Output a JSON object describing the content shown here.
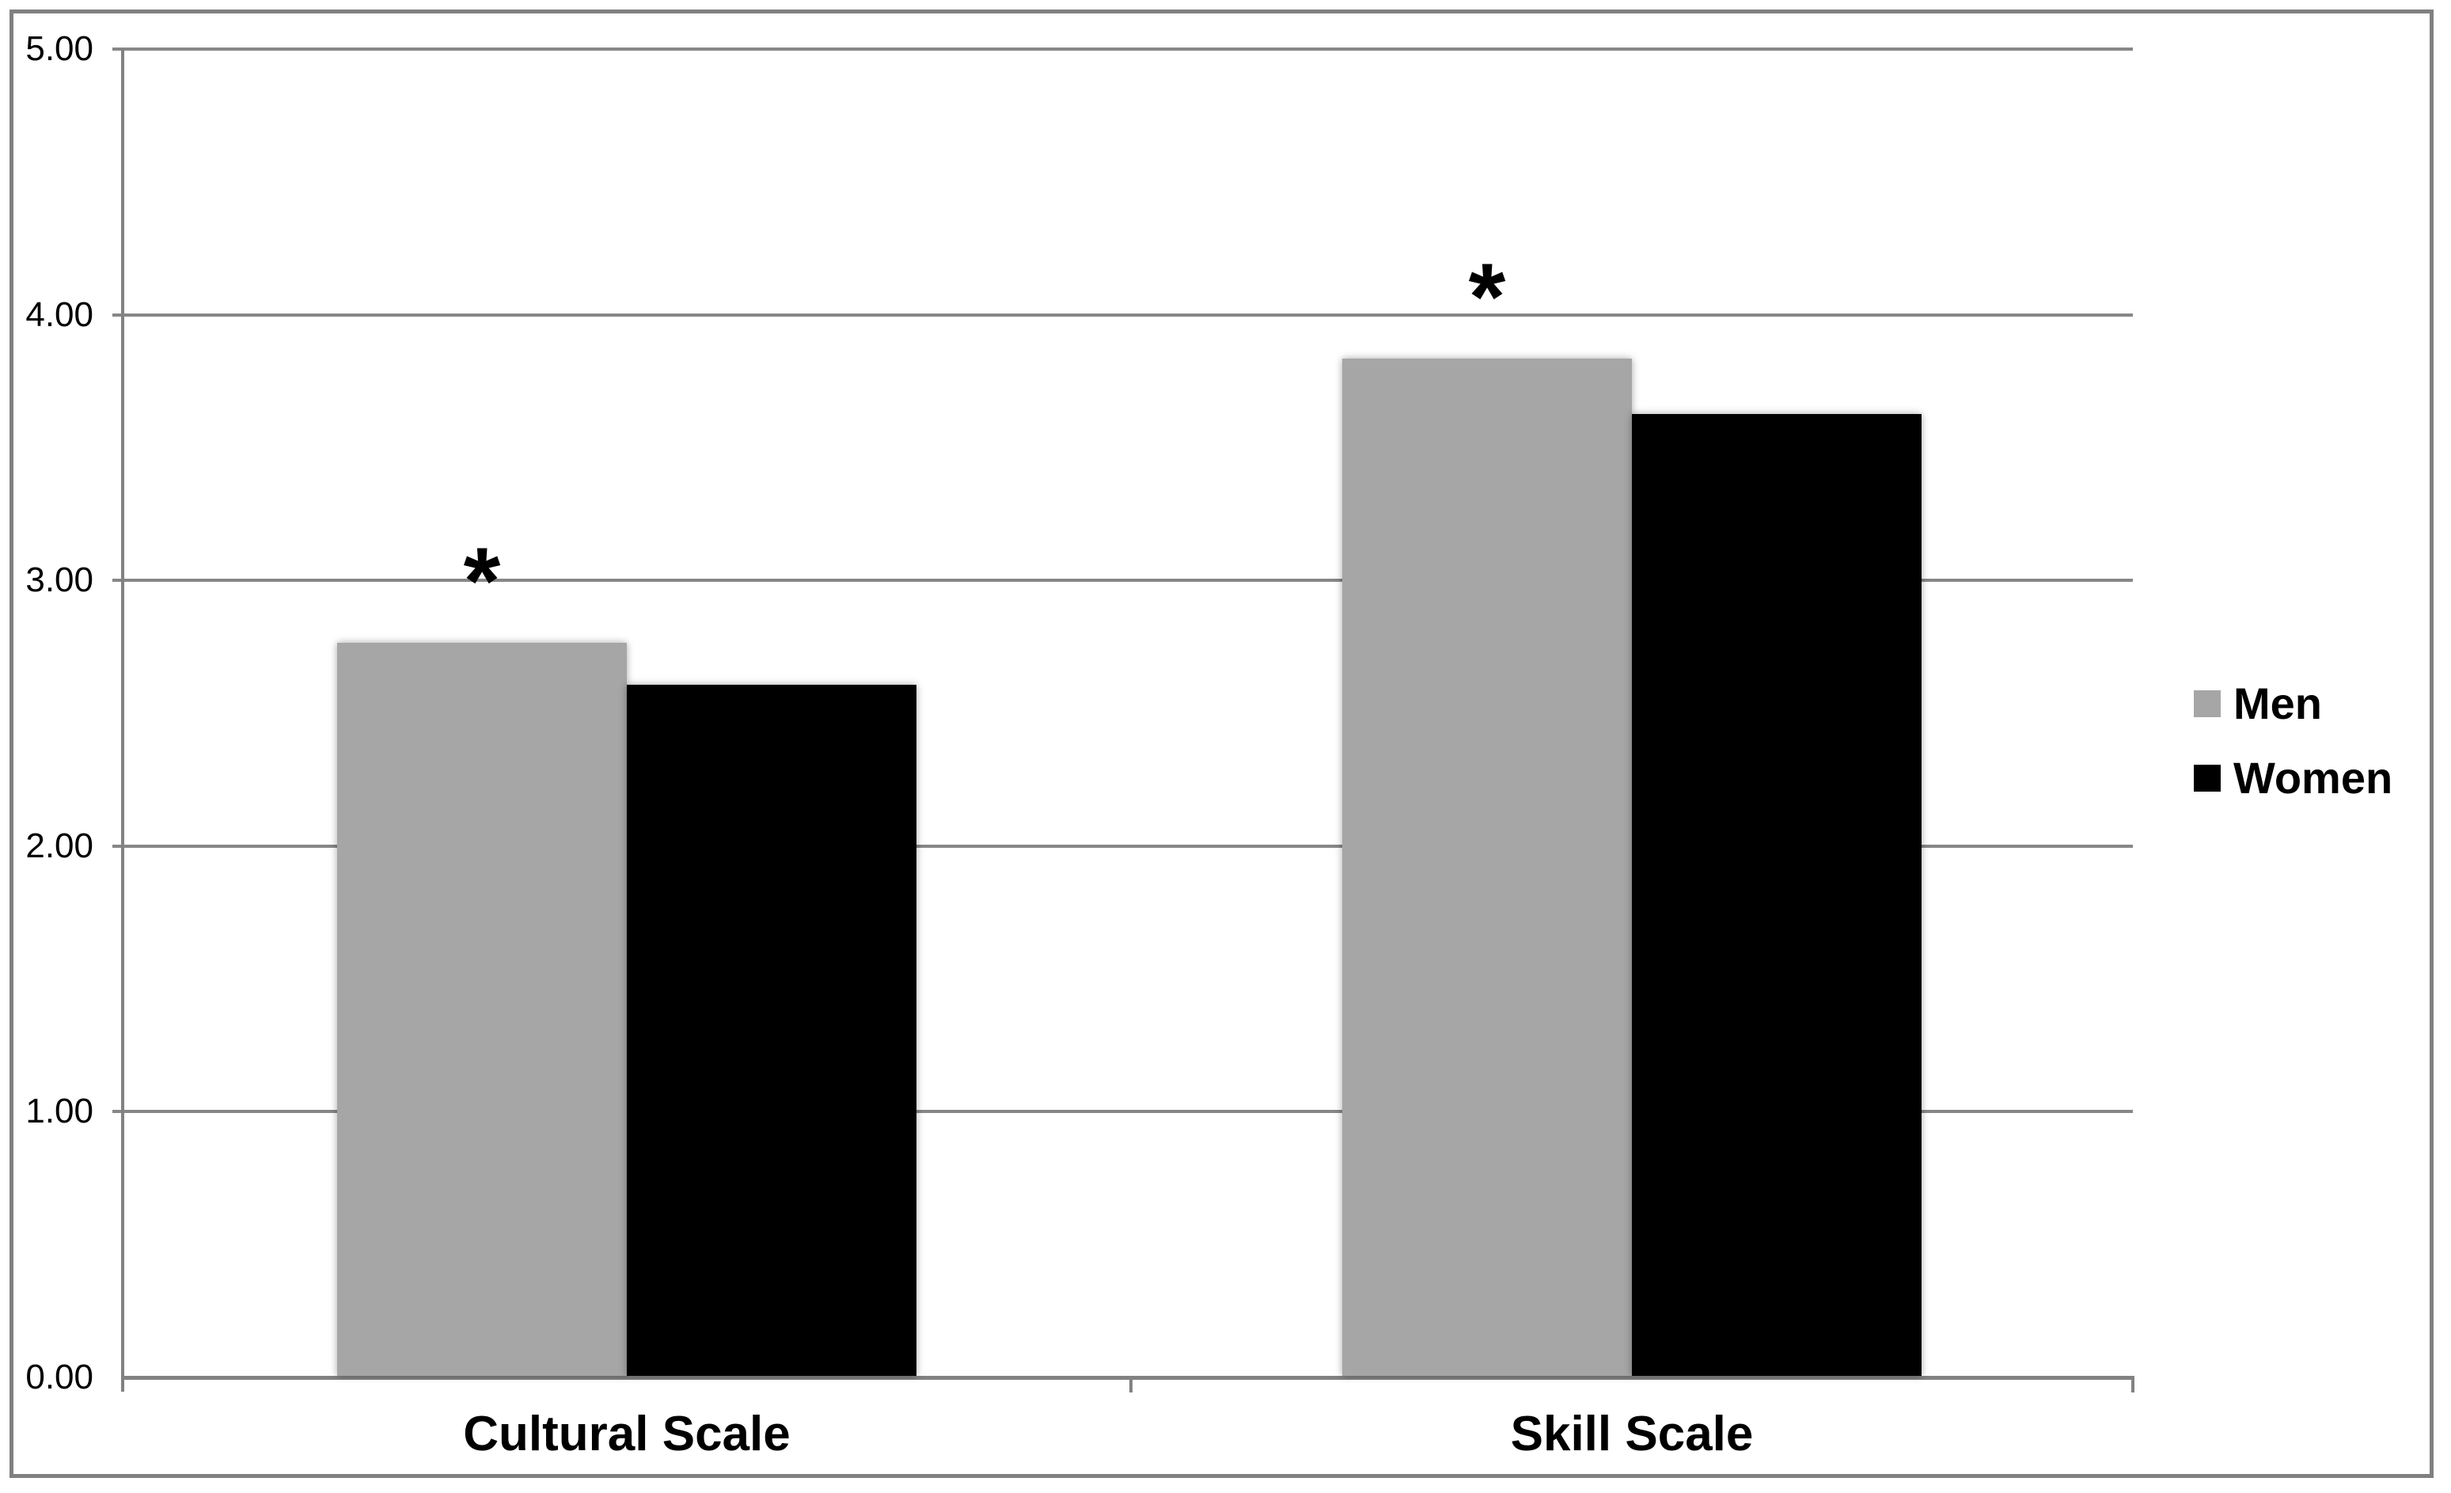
{
  "chart_data": {
    "type": "bar",
    "title": "",
    "xlabel": "",
    "ylabel": "",
    "categories": [
      "Cultural Scale",
      "Skill Scale"
    ],
    "series": [
      {
        "name": "Men",
        "color": "#a6a6a6",
        "values": [
          2.76,
          3.83
        ]
      },
      {
        "name": "Women",
        "color": "#000000",
        "values": [
          2.6,
          3.62
        ]
      }
    ],
    "ylim": [
      0,
      5
    ],
    "y_tick_labels": [
      "5.00",
      "4.00",
      "3.00",
      "2.00",
      "1.00",
      "0.00"
    ],
    "y_tick_values": [
      5,
      4,
      3,
      2,
      1,
      0
    ],
    "grid": "horizontal",
    "legend_position": "right-middle",
    "annotations": [
      {
        "text": "*",
        "category": "Cultural Scale",
        "series": "Men",
        "meaning": "significant difference"
      },
      {
        "text": "*",
        "category": "Skill Scale",
        "series": "Men",
        "meaning": "significant difference"
      }
    ],
    "colors": {
      "gridline": "#878787",
      "axis": "#828282",
      "frame_border": "#808080",
      "background": "#ffffff",
      "text": "#000000"
    }
  }
}
